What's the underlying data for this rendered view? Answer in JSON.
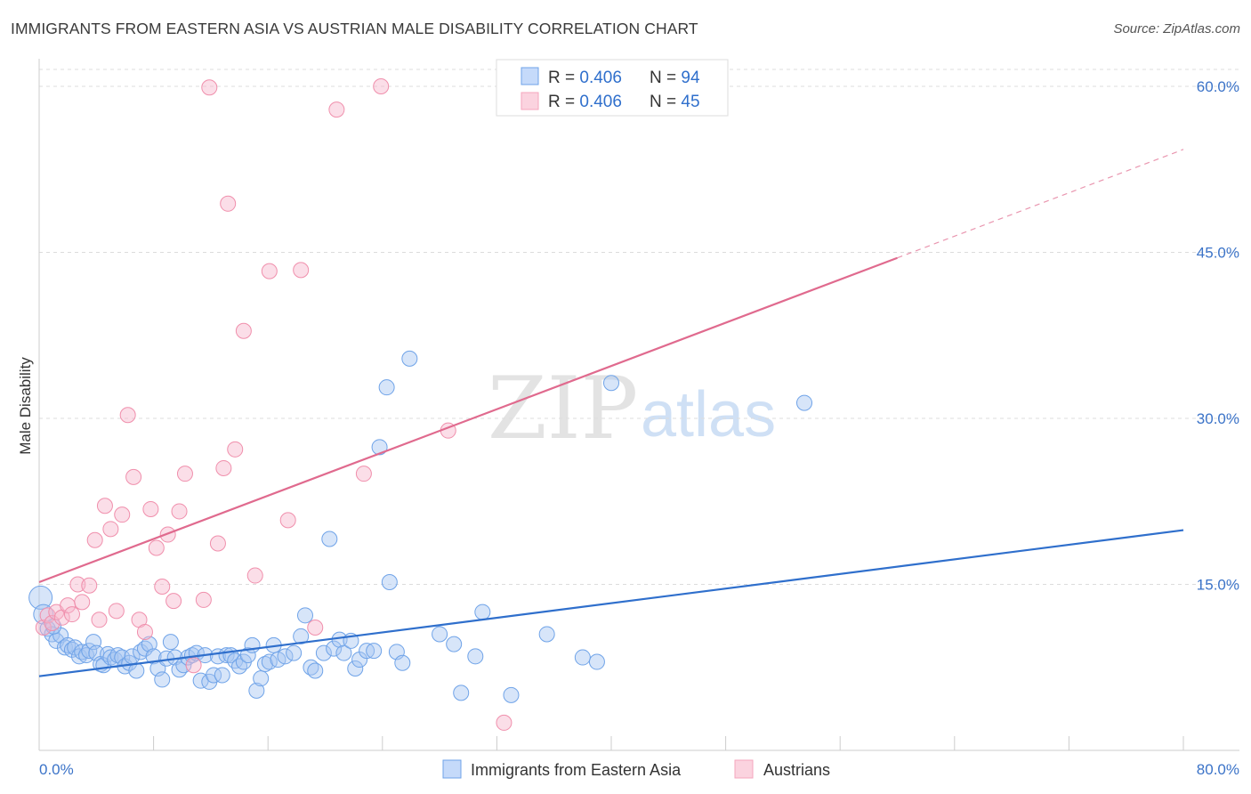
{
  "header": {
    "title": "IMMIGRANTS FROM EASTERN ASIA VS AUSTRIAN MALE DISABILITY CORRELATION CHART",
    "source": "Source: ZipAtlas.com"
  },
  "watermark": {
    "zip": "ZIP",
    "atlas": "atlas"
  },
  "legend": {
    "blue": {
      "r_label": "R = ",
      "r_value": "0.406",
      "n_label": "N = ",
      "n_value": "94"
    },
    "pink": {
      "r_label": "R = ",
      "r_value": "0.406",
      "n_label": "N = ",
      "n_value": "45"
    }
  },
  "chart_data": {
    "type": "scatter",
    "title": "IMMIGRANTS FROM EASTERN ASIA VS AUSTRIAN MALE DISABILITY CORRELATION CHART",
    "xlabel": "",
    "ylabel": "Male Disability",
    "xlim": [
      0,
      80
    ],
    "ylim": [
      0,
      60
    ],
    "x_tick_labels": [
      "0.0%",
      "80.0%"
    ],
    "y_ticks": [
      15,
      30,
      45,
      60
    ],
    "y_tick_labels": [
      "15.0%",
      "30.0%",
      "45.0%",
      "60.0%"
    ],
    "grid": true,
    "legend_position": "top-center",
    "colors": {
      "blue": "#6fa3e8",
      "blue_line": "#2f6fcc",
      "pink": "#f4a6bd",
      "pink_line": "#e06a8e"
    },
    "series": [
      {
        "name": "Immigrants from Eastern Asia",
        "color": "#6fa3e8",
        "trend": {
          "x": [
            0,
            80
          ],
          "y": [
            6.7,
            19.9
          ]
        },
        "points": [
          [
            0.1,
            13.8
          ],
          [
            0.3,
            12.3
          ],
          [
            0.6,
            11.0
          ],
          [
            0.9,
            10.5
          ],
          [
            1.2,
            9.9
          ],
          [
            1.5,
            10.4
          ],
          [
            1.8,
            9.3
          ],
          [
            2.0,
            9.5
          ],
          [
            2.3,
            9.1
          ],
          [
            2.5,
            9.3
          ],
          [
            2.8,
            8.5
          ],
          [
            3.0,
            8.9
          ],
          [
            3.3,
            8.6
          ],
          [
            3.5,
            9.0
          ],
          [
            3.8,
            9.8
          ],
          [
            4.0,
            8.8
          ],
          [
            4.3,
            7.8
          ],
          [
            4.5,
            7.7
          ],
          [
            4.8,
            8.7
          ],
          [
            5.0,
            8.4
          ],
          [
            5.3,
            8.2
          ],
          [
            5.5,
            8.6
          ],
          [
            5.8,
            8.4
          ],
          [
            6.0,
            7.6
          ],
          [
            6.3,
            7.9
          ],
          [
            6.5,
            8.5
          ],
          [
            6.8,
            7.2
          ],
          [
            7.1,
            8.9
          ],
          [
            7.4,
            9.2
          ],
          [
            7.7,
            9.6
          ],
          [
            8.0,
            8.5
          ],
          [
            8.3,
            7.4
          ],
          [
            8.6,
            6.4
          ],
          [
            8.9,
            8.3
          ],
          [
            9.2,
            9.8
          ],
          [
            9.5,
            8.4
          ],
          [
            9.8,
            7.3
          ],
          [
            10.1,
            7.7
          ],
          [
            10.4,
            8.4
          ],
          [
            10.7,
            8.6
          ],
          [
            11.0,
            8.8
          ],
          [
            11.3,
            6.3
          ],
          [
            11.6,
            8.6
          ],
          [
            11.9,
            6.2
          ],
          [
            12.2,
            6.8
          ],
          [
            12.5,
            8.5
          ],
          [
            12.8,
            6.8
          ],
          [
            13.1,
            8.6
          ],
          [
            13.4,
            8.6
          ],
          [
            13.7,
            8.1
          ],
          [
            14.0,
            7.6
          ],
          [
            14.3,
            8.0
          ],
          [
            14.6,
            8.6
          ],
          [
            14.9,
            9.5
          ],
          [
            15.2,
            5.4
          ],
          [
            15.5,
            6.5
          ],
          [
            15.8,
            7.8
          ],
          [
            16.1,
            8.0
          ],
          [
            16.4,
            9.5
          ],
          [
            16.7,
            8.2
          ],
          [
            17.2,
            8.5
          ],
          [
            17.8,
            8.8
          ],
          [
            18.3,
            10.3
          ],
          [
            18.6,
            12.2
          ],
          [
            19.0,
            7.5
          ],
          [
            19.3,
            7.2
          ],
          [
            19.9,
            8.8
          ],
          [
            20.3,
            19.1
          ],
          [
            20.6,
            9.2
          ],
          [
            21.0,
            10.0
          ],
          [
            21.3,
            8.8
          ],
          [
            21.8,
            9.9
          ],
          [
            22.1,
            7.4
          ],
          [
            22.4,
            8.2
          ],
          [
            22.9,
            9.0
          ],
          [
            23.4,
            9.0
          ],
          [
            23.8,
            27.4
          ],
          [
            24.3,
            32.8
          ],
          [
            24.5,
            15.2
          ],
          [
            25.0,
            8.9
          ],
          [
            25.4,
            7.9
          ],
          [
            25.9,
            35.4
          ],
          [
            28.0,
            10.5
          ],
          [
            29.0,
            9.6
          ],
          [
            29.5,
            5.2
          ],
          [
            30.5,
            8.5
          ],
          [
            31.0,
            12.5
          ],
          [
            33.0,
            5.0
          ],
          [
            35.5,
            10.5
          ],
          [
            38.0,
            8.4
          ],
          [
            39.0,
            8.0
          ],
          [
            40.0,
            33.2
          ],
          [
            53.5,
            31.4
          ],
          [
            1.0,
            11.2
          ]
        ]
      },
      {
        "name": "Austrians",
        "color": "#f4a6bd",
        "trend": {
          "x": [
            0,
            60
          ],
          "y": [
            15.2,
            44.5
          ],
          "dashed_to": {
            "x": 80,
            "y": 54.3
          }
        },
        "points": [
          [
            0.3,
            11.1
          ],
          [
            0.6,
            12.2
          ],
          [
            0.9,
            11.5
          ],
          [
            1.2,
            12.5
          ],
          [
            1.6,
            12.0
          ],
          [
            2.0,
            13.1
          ],
          [
            2.3,
            12.3
          ],
          [
            2.7,
            15.0
          ],
          [
            3.0,
            13.4
          ],
          [
            3.5,
            14.9
          ],
          [
            3.9,
            19.0
          ],
          [
            4.2,
            11.8
          ],
          [
            4.6,
            22.1
          ],
          [
            5.0,
            20.0
          ],
          [
            5.4,
            12.6
          ],
          [
            5.8,
            21.3
          ],
          [
            6.2,
            30.3
          ],
          [
            6.6,
            24.7
          ],
          [
            7.0,
            11.8
          ],
          [
            7.4,
            10.7
          ],
          [
            7.8,
            21.8
          ],
          [
            8.2,
            18.3
          ],
          [
            8.6,
            14.8
          ],
          [
            9.0,
            19.5
          ],
          [
            9.4,
            13.5
          ],
          [
            9.8,
            21.6
          ],
          [
            10.2,
            25.0
          ],
          [
            10.8,
            7.7
          ],
          [
            11.5,
            13.6
          ],
          [
            11.9,
            59.9
          ],
          [
            12.5,
            18.7
          ],
          [
            12.9,
            25.5
          ],
          [
            13.2,
            49.4
          ],
          [
            13.7,
            27.2
          ],
          [
            14.3,
            37.9
          ],
          [
            15.1,
            15.8
          ],
          [
            16.1,
            43.3
          ],
          [
            17.4,
            20.8
          ],
          [
            18.3,
            43.4
          ],
          [
            19.3,
            11.1
          ],
          [
            20.8,
            57.9
          ],
          [
            22.7,
            25.0
          ],
          [
            23.9,
            60.0
          ],
          [
            28.6,
            28.9
          ],
          [
            32.5,
            2.5
          ]
        ]
      }
    ]
  },
  "bottom_legend": {
    "blue_label": "Immigrants from Eastern Asia",
    "pink_label": "Austrians"
  }
}
